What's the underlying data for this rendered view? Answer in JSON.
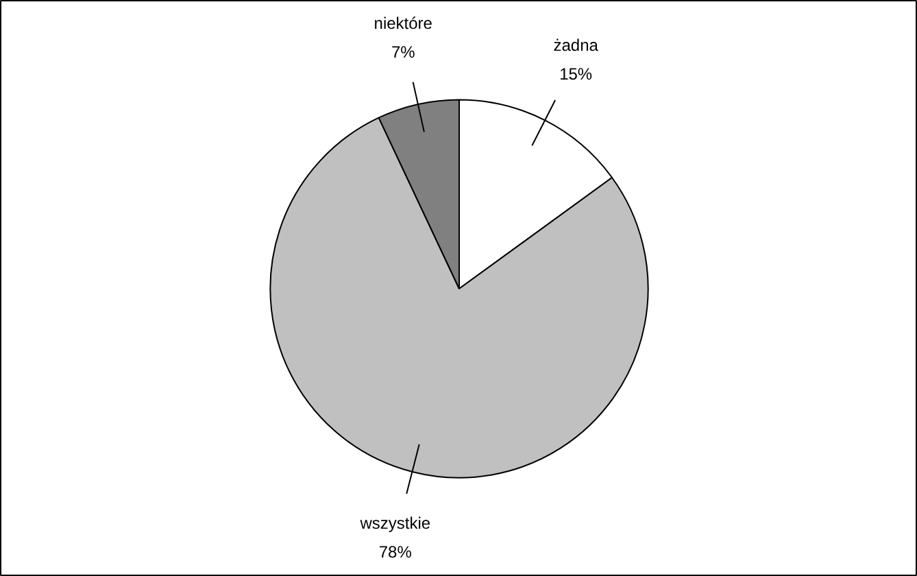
{
  "chart_data": {
    "type": "pie",
    "categories": [
      "żadna",
      "wszystkie",
      "niektóre"
    ],
    "values": [
      15,
      78,
      7
    ],
    "colors": [
      "#ffffff",
      "#c0c0c0",
      "#808080"
    ],
    "value_labels": [
      "15%",
      "78%",
      "7%"
    ]
  }
}
